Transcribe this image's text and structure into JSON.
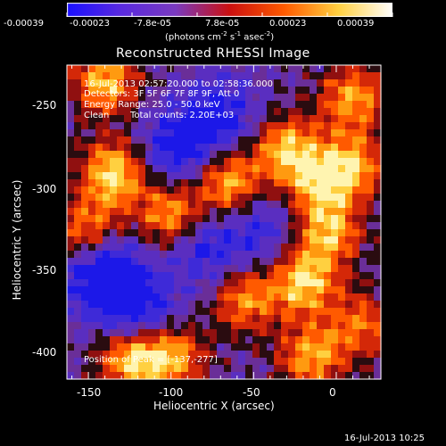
{
  "colorbar": {
    "ticks": [
      "-0.00039",
      "-0.00023",
      "-7.8e-05",
      "7.8e-05",
      "0.00023",
      "0.00039"
    ],
    "units_main": "(photons cm",
    "units_exp1": "-2",
    "units_mid": " s",
    "units_exp2": "-1",
    "units_end": " asec",
    "units_exp3": "-2",
    "units_close": ")",
    "colors": [
      "#1a10ff",
      "#5a2ae0",
      "#7a3ac0",
      "#cc1010",
      "#ff5a00",
      "#ffd040",
      "#ffffff"
    ]
  },
  "chart_data": {
    "type": "heatmap",
    "title": "Reconstructed RHESSI Image",
    "xlabel": "Heliocentric X (arcsec)",
    "ylabel": "Heliocentric Y (arcsec)",
    "xlim": [
      -163,
      27
    ],
    "ylim": [
      -418,
      -230
    ],
    "xticks": [
      -150,
      -100,
      -50,
      0
    ],
    "yticks": [
      -250,
      -300,
      -350,
      -400
    ],
    "grid": false,
    "annotations": {
      "time": "16-Jul-2013 02:57:20.000 to 02:58:36.000",
      "detectors": "Detectors: 3F 5F 6F 7F 8F 9F, Att 0",
      "energy": "Energy Range: 25.0 - 50.0 keV",
      "clean": "Clean",
      "counts": "Total counts: 2.20E+03",
      "peak": "Position of Peak = [-137,-277]"
    },
    "hot_regions": [
      {
        "x": -135,
        "y": -295,
        "level": 0.95
      },
      {
        "x": -140,
        "y": -240,
        "level": 0.85
      },
      {
        "x": -150,
        "y": -330,
        "level": 0.7
      },
      {
        "x": -100,
        "y": -320,
        "level": 0.8
      },
      {
        "x": -65,
        "y": -300,
        "level": 0.85
      },
      {
        "x": -30,
        "y": -280,
        "level": 0.8
      },
      {
        "x": -5,
        "y": -330,
        "level": 0.8
      },
      {
        "x": -10,
        "y": -300,
        "level": 0.75
      },
      {
        "x": -20,
        "y": -360,
        "level": 0.9
      },
      {
        "x": 10,
        "y": -250,
        "level": 0.75
      },
      {
        "x": 10,
        "y": -290,
        "level": 0.7
      },
      {
        "x": -125,
        "y": -405,
        "level": 0.9
      },
      {
        "x": -100,
        "y": -405,
        "level": 0.8
      },
      {
        "x": -55,
        "y": -370,
        "level": 0.7
      },
      {
        "x": -15,
        "y": -405,
        "level": 0.75
      },
      {
        "x": 15,
        "y": -385,
        "level": 0.6
      }
    ],
    "cold_regions": [
      {
        "x": -140,
        "y": -355,
        "level": 0.9
      },
      {
        "x": -95,
        "y": -280,
        "level": 0.6
      },
      {
        "x": -70,
        "y": -260,
        "level": 0.5
      },
      {
        "x": -120,
        "y": -380,
        "level": 0.6
      },
      {
        "x": -80,
        "y": -340,
        "level": 0.5
      },
      {
        "x": -45,
        "y": -330,
        "level": 0.4
      }
    ]
  },
  "footer": {
    "timestamp": "16-Jul-2013 10:25"
  }
}
